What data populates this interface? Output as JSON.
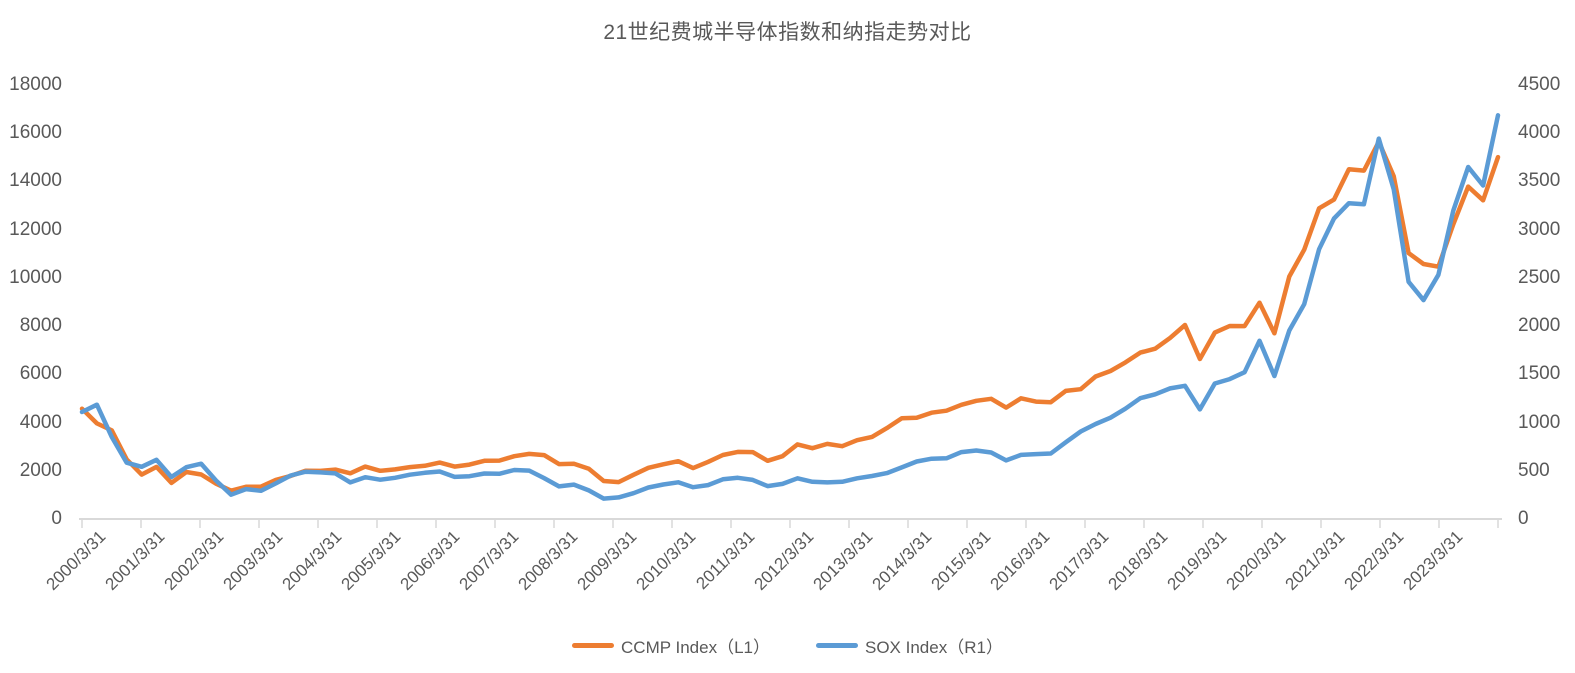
{
  "chart_data": {
    "type": "line",
    "title": "21世纪费城半导体指数和纳指走势对比",
    "frequency": "quarterly",
    "x_range": [
      "2000/3/31",
      "2023/12/31"
    ],
    "x_tick_labels": [
      "2000/3/31",
      "2001/3/31",
      "2002/3/31",
      "2003/3/31",
      "2004/3/31",
      "2005/3/31",
      "2006/3/31",
      "2007/3/31",
      "2008/3/31",
      "2009/3/31",
      "2010/3/31",
      "2011/3/31",
      "2012/3/31",
      "2013/3/31",
      "2014/3/31",
      "2015/3/31",
      "2016/3/31",
      "2017/3/31",
      "2018/3/31",
      "2019/3/31",
      "2020/3/31",
      "2021/3/31",
      "2022/3/31",
      "2023/3/31"
    ],
    "left_axis": {
      "min": 0,
      "max": 18000,
      "step": 2000,
      "tick_labels": [
        "0",
        "2000",
        "4000",
        "6000",
        "8000",
        "10000",
        "12000",
        "14000",
        "16000",
        "18000"
      ]
    },
    "right_axis": {
      "min": 0,
      "max": 4500,
      "step": 500,
      "tick_labels": [
        "0",
        "500",
        "1000",
        "1500",
        "2000",
        "2500",
        "3000",
        "3500",
        "4000",
        "4500"
      ]
    },
    "series": [
      {
        "name": "CCMP Index（L1）",
        "axis": "left",
        "color": "#ED7D31",
        "values": [
          4573,
          3966,
          3673,
          2471,
          1840,
          2160,
          1499,
          1950,
          1845,
          1463,
          1172,
          1336,
          1341,
          1623,
          1787,
          2003,
          1994,
          2048,
          1897,
          2175,
          1999,
          2057,
          2152,
          2205,
          2340,
          2172,
          2258,
          2415,
          2422,
          2603,
          2702,
          2652,
          2279,
          2293,
          2082,
          1577,
          1529,
          1835,
          2122,
          2269,
          2398,
          2109,
          2369,
          2653,
          2781,
          2774,
          2415,
          2605,
          3092,
          2935,
          3116,
          3020,
          3268,
          3403,
          3772,
          4177,
          4199,
          4408,
          4493,
          4736,
          4901,
          4987,
          4620,
          5007,
          4870,
          4843,
          5312,
          5383,
          5912,
          6140,
          6496,
          6903,
          7063,
          7510,
          8046,
          6635,
          7729,
          8006,
          7999,
          8973,
          7700,
          10059,
          11168,
          12888,
          13247,
          14504,
          14449,
          15645,
          14221,
          11029,
          10576,
          10466,
          12222,
          13788,
          13219,
          15011
        ]
      },
      {
        "name": "SOX Index（R1）",
        "axis": "right",
        "color": "#5B9BD5",
        "values": [
          1109,
          1185,
          850,
          584,
          541,
          614,
          436,
          537,
          573,
          398,
          252,
          310,
          292,
          369,
          451,
          490,
          483,
          473,
          379,
          433,
          408,
          427,
          459,
          479,
          493,
          437,
          444,
          472,
          469,
          508,
          502,
          424,
          338,
          357,
          297,
          212,
          224,
          267,
          327,
          358,
          381,
          330,
          352,
          412,
          427,
          405,
          341,
          364,
          422,
          386,
          379,
          386,
          422,
          446,
          476,
          535,
          596,
          625,
          629,
          694,
          710,
          689,
          608,
          665,
          673,
          679,
          795,
          907,
          985,
          1050,
          1144,
          1253,
          1293,
          1354,
          1381,
          1136,
          1405,
          1451,
          1522,
          1848,
          1483,
          1954,
          2227,
          2797,
          3116,
          3274,
          3264,
          3944,
          3420,
          2459,
          2270,
          2532,
          3198,
          3650,
          3458,
          4186
        ]
      }
    ],
    "legend_position": "bottom",
    "grid": false,
    "colors": {
      "axis_line": "#D9D9D9",
      "text": "#595959",
      "background": "#FFFFFF"
    }
  }
}
